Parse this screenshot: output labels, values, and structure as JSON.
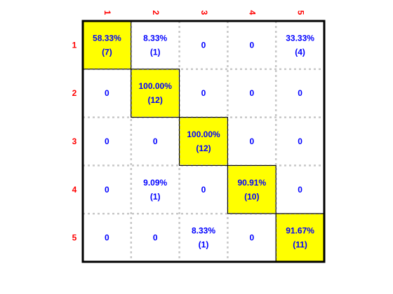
{
  "colors": {
    "diagonal_fill": "#ffff00",
    "cell_fill": "#ffffff",
    "value_text": "#0000ff",
    "axis_label_text": "#ff0000",
    "grid_line": "#c8c8c8",
    "border": "#000000"
  },
  "chart_data": {
    "type": "heatmap",
    "subtype": "confusion-matrix",
    "row_labels": [
      "1",
      "2",
      "3",
      "4",
      "5"
    ],
    "col_labels": [
      "1",
      "2",
      "3",
      "4",
      "5"
    ],
    "col_label_position": "top",
    "col_label_rotation": "vertical",
    "row_label_position": "left",
    "grid": true,
    "grid_style": "dashed",
    "diagonal_highlight": true,
    "cells": [
      [
        {
          "percent": "58.33%",
          "count": "(7)"
        },
        {
          "percent": "8.33%",
          "count": "(1)"
        },
        {
          "percent": "0",
          "count": ""
        },
        {
          "percent": "0",
          "count": ""
        },
        {
          "percent": "33.33%",
          "count": "(4)"
        }
      ],
      [
        {
          "percent": "0",
          "count": ""
        },
        {
          "percent": "100.00%",
          "count": "(12)"
        },
        {
          "percent": "0",
          "count": ""
        },
        {
          "percent": "0",
          "count": ""
        },
        {
          "percent": "0",
          "count": ""
        }
      ],
      [
        {
          "percent": "0",
          "count": ""
        },
        {
          "percent": "0",
          "count": ""
        },
        {
          "percent": "100.00%",
          "count": "(12)"
        },
        {
          "percent": "0",
          "count": ""
        },
        {
          "percent": "0",
          "count": ""
        }
      ],
      [
        {
          "percent": "0",
          "count": ""
        },
        {
          "percent": "9.09%",
          "count": "(1)"
        },
        {
          "percent": "0",
          "count": ""
        },
        {
          "percent": "90.91%",
          "count": "(10)"
        },
        {
          "percent": "0",
          "count": ""
        }
      ],
      [
        {
          "percent": "0",
          "count": ""
        },
        {
          "percent": "0",
          "count": ""
        },
        {
          "percent": "8.33%",
          "count": "(1)"
        },
        {
          "percent": "0",
          "count": ""
        },
        {
          "percent": "91.67%",
          "count": "(11)"
        }
      ]
    ]
  }
}
